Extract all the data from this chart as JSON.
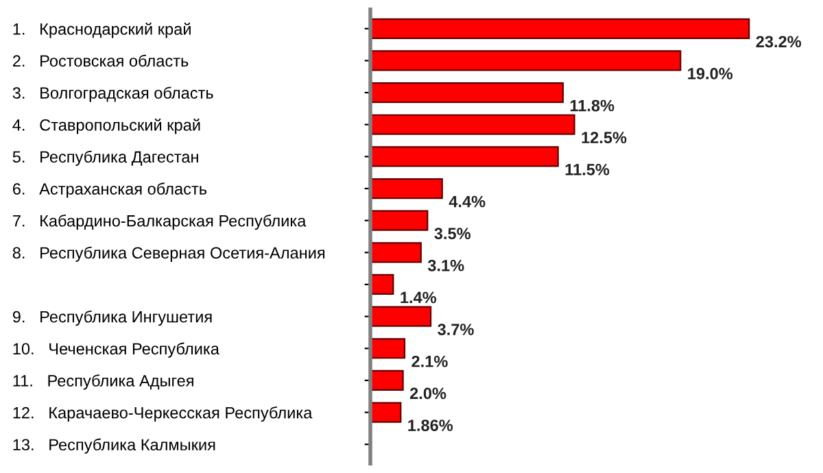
{
  "chart_data": {
    "type": "bar",
    "orientation": "horizontal",
    "categories": [
      "1.   Краснодарский край",
      "2.   Ростовская область",
      "3.   Волгоградская область",
      "4.   Ставропольский край",
      "5.   Республика Дагестан",
      "6.   Астраханская область",
      "7.   Кабардино-Балкарская Республика",
      "8.   Республика Северная Осетия-Алания",
      null,
      "9.   Республика Ингушетия",
      "10.   Чеченская Республика",
      "11.   Республика Адыгея",
      "12.   Карачаево-Черкесская Республика",
      "13.   Республика Калмыкия"
    ],
    "values": [
      23.2,
      19.0,
      11.8,
      12.5,
      11.5,
      4.4,
      3.5,
      3.1,
      1.4,
      3.7,
      2.1,
      2.0,
      1.86,
      null
    ],
    "value_labels": [
      "23.2%",
      "19.0%",
      "11.8%",
      "12.5%",
      "11.5%",
      "4.4%",
      "3.5%",
      "3.1%",
      "1.4%",
      "3.7%",
      "2.1%",
      "2.0%",
      "1.86%",
      null
    ],
    "color": "#ff0000",
    "grid": false,
    "legend": false
  }
}
